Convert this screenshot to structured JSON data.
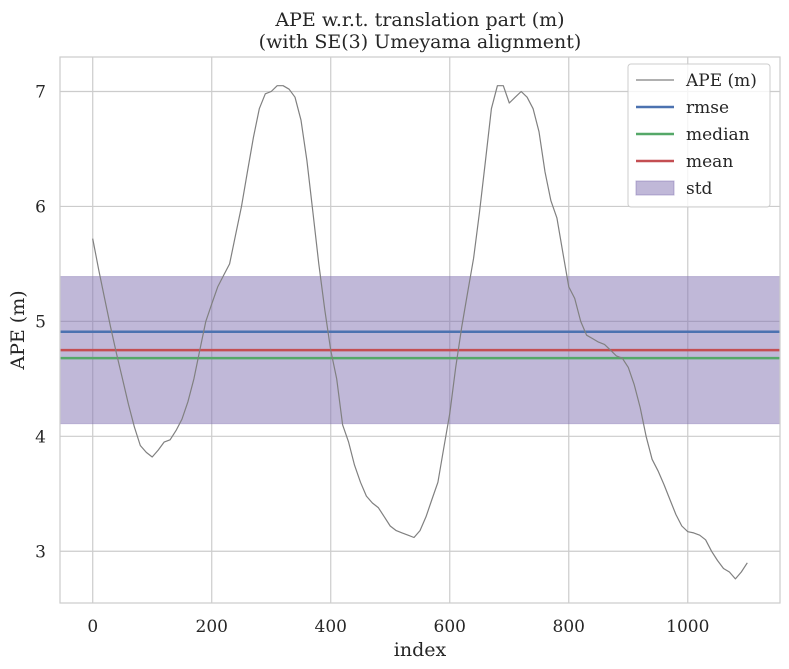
{
  "chart_data": {
    "type": "line",
    "title": "APE w.r.t. translation part (m)",
    "subtitle": "(with SE(3) Umeyama alignment)",
    "xlabel": "index",
    "ylabel": "APE (m)",
    "xlim": [
      -55,
      1155
    ],
    "ylim": [
      2.55,
      7.3
    ],
    "xticks": [
      0,
      200,
      400,
      600,
      800,
      1000
    ],
    "yticks": [
      3,
      4,
      5,
      6,
      7
    ],
    "grid": true,
    "legend_position": "top-right",
    "series": [
      {
        "name": "APE (m)",
        "color": "#808080",
        "points": [
          [
            0,
            5.72
          ],
          [
            10,
            5.45
          ],
          [
            20,
            5.2
          ],
          [
            30,
            4.95
          ],
          [
            40,
            4.72
          ],
          [
            50,
            4.5
          ],
          [
            60,
            4.28
          ],
          [
            70,
            4.08
          ],
          [
            80,
            3.92
          ],
          [
            90,
            3.86
          ],
          [
            100,
            3.82
          ],
          [
            110,
            3.88
          ],
          [
            120,
            3.95
          ],
          [
            130,
            3.97
          ],
          [
            140,
            4.05
          ],
          [
            150,
            4.15
          ],
          [
            160,
            4.3
          ],
          [
            170,
            4.5
          ],
          [
            180,
            4.75
          ],
          [
            190,
            5.0
          ],
          [
            200,
            5.15
          ],
          [
            210,
            5.3
          ],
          [
            220,
            5.4
          ],
          [
            230,
            5.5
          ],
          [
            240,
            5.75
          ],
          [
            250,
            6.0
          ],
          [
            260,
            6.3
          ],
          [
            270,
            6.6
          ],
          [
            280,
            6.85
          ],
          [
            290,
            6.98
          ],
          [
            300,
            7.0
          ],
          [
            310,
            7.05
          ],
          [
            320,
            7.05
          ],
          [
            330,
            7.02
          ],
          [
            340,
            6.95
          ],
          [
            350,
            6.75
          ],
          [
            360,
            6.4
          ],
          [
            370,
            5.95
          ],
          [
            380,
            5.5
          ],
          [
            390,
            5.1
          ],
          [
            400,
            4.75
          ],
          [
            410,
            4.5
          ],
          [
            420,
            4.1
          ],
          [
            430,
            3.95
          ],
          [
            440,
            3.75
          ],
          [
            450,
            3.6
          ],
          [
            460,
            3.48
          ],
          [
            470,
            3.42
          ],
          [
            480,
            3.38
          ],
          [
            490,
            3.3
          ],
          [
            500,
            3.22
          ],
          [
            510,
            3.18
          ],
          [
            520,
            3.16
          ],
          [
            530,
            3.14
          ],
          [
            540,
            3.12
          ],
          [
            550,
            3.18
          ],
          [
            560,
            3.3
          ],
          [
            570,
            3.45
          ],
          [
            580,
            3.6
          ],
          [
            590,
            3.9
          ],
          [
            600,
            4.2
          ],
          [
            610,
            4.6
          ],
          [
            620,
            4.95
          ],
          [
            630,
            5.25
          ],
          [
            640,
            5.55
          ],
          [
            650,
            5.95
          ],
          [
            660,
            6.4
          ],
          [
            670,
            6.85
          ],
          [
            680,
            7.05
          ],
          [
            690,
            7.05
          ],
          [
            700,
            6.9
          ],
          [
            710,
            6.95
          ],
          [
            720,
            7.0
          ],
          [
            730,
            6.95
          ],
          [
            740,
            6.85
          ],
          [
            750,
            6.65
          ],
          [
            760,
            6.3
          ],
          [
            770,
            6.05
          ],
          [
            780,
            5.9
          ],
          [
            790,
            5.6
          ],
          [
            800,
            5.3
          ],
          [
            810,
            5.2
          ],
          [
            820,
            5.0
          ],
          [
            830,
            4.88
          ],
          [
            840,
            4.85
          ],
          [
            850,
            4.82
          ],
          [
            860,
            4.8
          ],
          [
            870,
            4.75
          ],
          [
            880,
            4.7
          ],
          [
            890,
            4.68
          ],
          [
            900,
            4.6
          ],
          [
            910,
            4.45
          ],
          [
            920,
            4.25
          ],
          [
            930,
            4.0
          ],
          [
            940,
            3.8
          ],
          [
            950,
            3.7
          ],
          [
            960,
            3.58
          ],
          [
            970,
            3.45
          ],
          [
            980,
            3.32
          ],
          [
            990,
            3.22
          ],
          [
            1000,
            3.17
          ],
          [
            1010,
            3.16
          ],
          [
            1020,
            3.14
          ],
          [
            1030,
            3.1
          ],
          [
            1040,
            3.0
          ],
          [
            1050,
            2.92
          ],
          [
            1060,
            2.85
          ],
          [
            1070,
            2.82
          ],
          [
            1080,
            2.76
          ],
          [
            1090,
            2.82
          ],
          [
            1100,
            2.9
          ]
        ]
      }
    ],
    "stats": {
      "rmse": {
        "name": "rmse",
        "value": 4.91,
        "color": "#4c72b0"
      },
      "median": {
        "name": "median",
        "value": 4.68,
        "color": "#55a868"
      },
      "mean": {
        "name": "mean",
        "value": 4.75,
        "color": "#c44e52"
      },
      "std": {
        "name": "std",
        "lower": 4.11,
        "upper": 5.39,
        "color": "#8172b2"
      }
    },
    "legend": [
      "APE (m)",
      "rmse",
      "median",
      "mean",
      "std"
    ]
  }
}
